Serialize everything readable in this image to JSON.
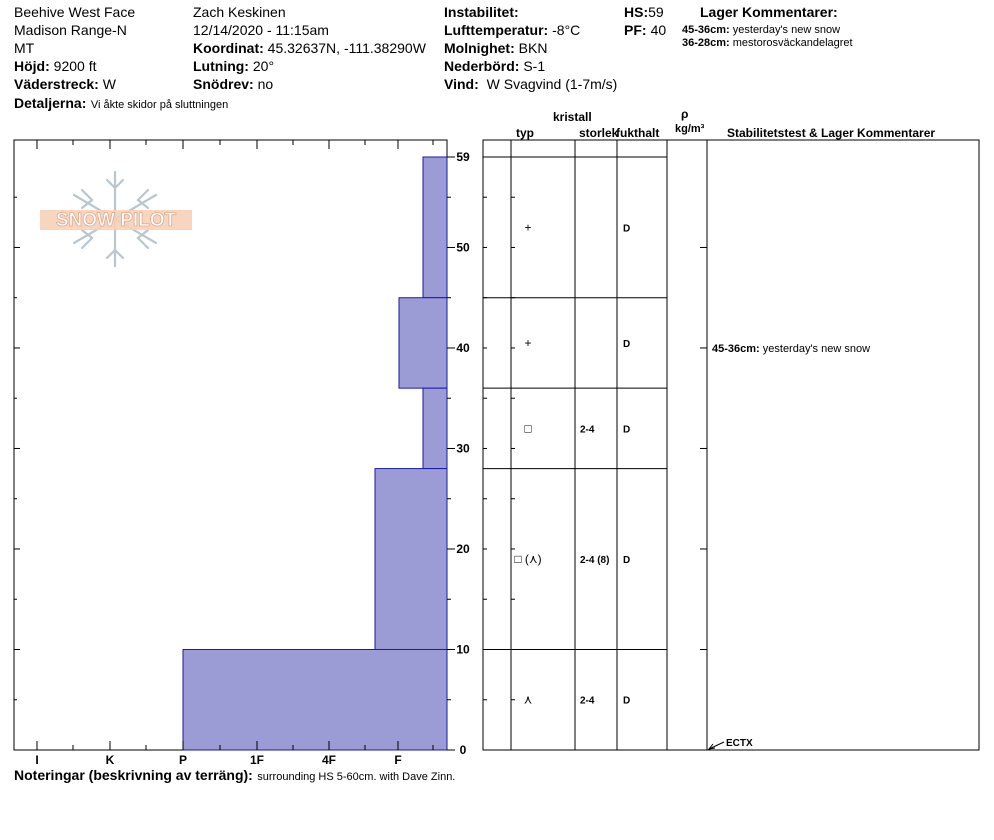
{
  "header": {
    "location": "Beehive West Face",
    "range": "Madison Range-N",
    "state": "MT",
    "elevation_label": "Höjd:",
    "elevation": "9200 ft",
    "aspect_label": "Väderstreck:",
    "aspect": "W",
    "details_label": "Detaljerna:",
    "details": "Vi åkte skidor på sluttningen",
    "observer": "Zach Keskinen",
    "datetime": "12/14/2020 - 11:15am",
    "coords_label": "Koordinat:",
    "coords": "45.32637N, -111.38290W",
    "slope_label": "Lutning:",
    "slope": "20°",
    "drift_label": "Snödrev:",
    "drift": "no",
    "instability_label": "Instabilitet:",
    "airtemp_label": "Lufttemperatur:",
    "airtemp": "-8°C",
    "sky_label": "Molnighet:",
    "sky": "BKN",
    "precip_label": "Nederbörd:",
    "precip": "S-1",
    "wind_label": "Vind:",
    "wind": "W Svagvind (1-7m/s)",
    "hs_label": "HS:",
    "hs": "59",
    "pf_label": "PF:",
    "pf": "40",
    "layer_comments_title": "Lager Kommentarer:",
    "layer_comments": [
      {
        "range": "45-36cm:",
        "text": "yesterday's new snow"
      },
      {
        "range": "36-28cm:",
        "text": "mestorosväckandelagret"
      }
    ]
  },
  "logo": {
    "text": "SNOW PILOT"
  },
  "columns": {
    "crystal_group": "kristall",
    "type": "typ",
    "size": "storlek",
    "moisture": "fukthalt",
    "density_symbol": "ρ",
    "density_unit": "kg/m³",
    "stability": "Stabilitetstest & Lager Kommentarer"
  },
  "chart_data": {
    "type": "bar",
    "orientation": "horizontal",
    "subject": "hand hardness profile",
    "x_categories": [
      "I",
      "K",
      "P",
      "1F",
      "4F",
      "F"
    ],
    "y_ticks": [
      0,
      10,
      20,
      30,
      40,
      50,
      59
    ],
    "ylim": [
      0,
      59
    ],
    "layers": [
      {
        "top": 59,
        "bottom": 45,
        "hardness": "F+",
        "type_symbol": "+",
        "size": "",
        "moisture": "D"
      },
      {
        "top": 45,
        "bottom": 36,
        "hardness": "F-",
        "type_symbol": "+",
        "size": "",
        "moisture": "D"
      },
      {
        "top": 36,
        "bottom": 28,
        "hardness": "F+",
        "type_symbol": "□",
        "size": "2-4",
        "moisture": "D"
      },
      {
        "top": 28,
        "bottom": 10,
        "hardness": "4F+",
        "type_symbol": "□ (⋏)",
        "size": "2-4 (8)",
        "moisture": "D"
      },
      {
        "top": 10,
        "bottom": 0,
        "hardness": "P",
        "type_symbol": "⋏",
        "size": "2-4",
        "moisture": "D"
      }
    ],
    "annotations": [
      {
        "depth": 40,
        "range": "45-36cm:",
        "text": "yesterday's new snow"
      },
      {
        "depth": 0,
        "text": "ECTX"
      }
    ],
    "bar_color": "#9b9bd6",
    "bar_edge": "#1a1aa8"
  },
  "notes": {
    "label": "Noteringar (beskrivning av terräng):",
    "text": "surrounding HS 5-60cm. with Dave Zinn."
  }
}
